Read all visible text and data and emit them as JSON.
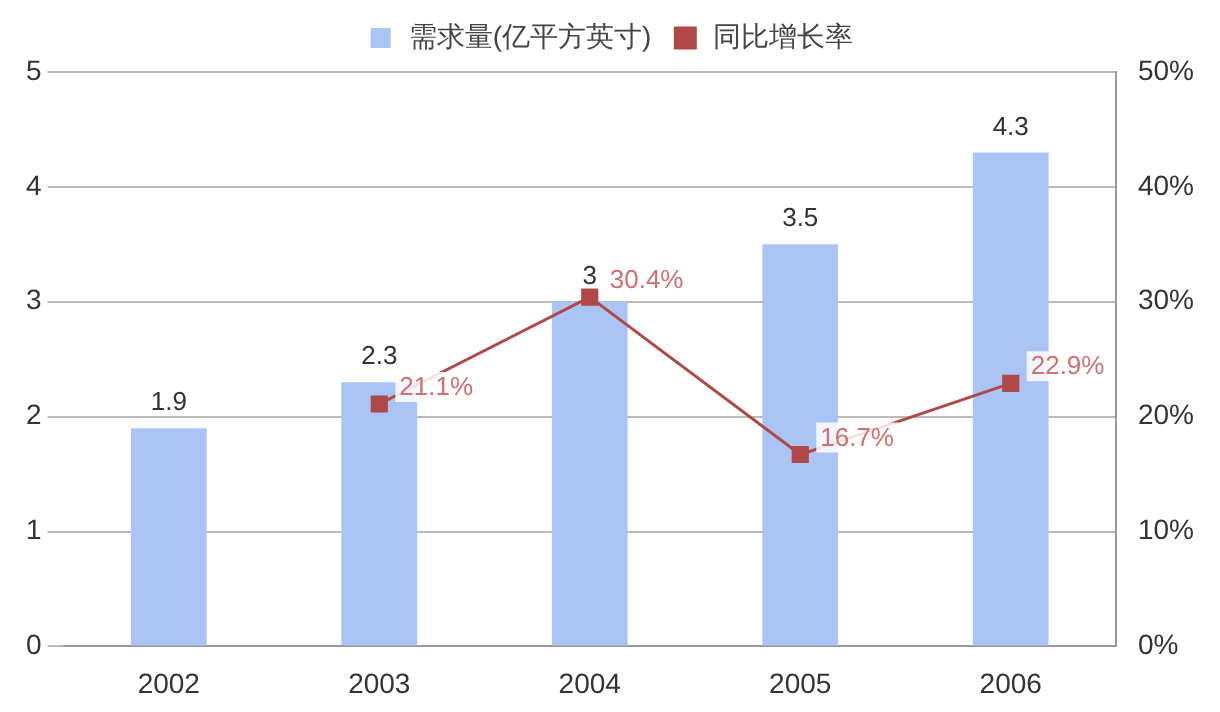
{
  "chart_data": {
    "type": "bar",
    "categories": [
      "2002",
      "2003",
      "2004",
      "2005",
      "2006"
    ],
    "series": [
      {
        "name": "需求量(亿平方英寸)",
        "color": "#a9c4f5",
        "values": [
          1.9,
          2.3,
          3,
          3.5,
          4.3
        ],
        "value_labels": [
          "1.9",
          "2.3",
          "3",
          "3.5",
          "4.3"
        ]
      },
      {
        "name": "同比增长率",
        "type": "line",
        "axis": "y2",
        "color": "#b04848",
        "values": [
          null,
          21.1,
          30.4,
          16.7,
          22.9
        ],
        "value_labels": [
          null,
          "21.1%",
          "30.4%",
          "16.7%",
          "22.9%"
        ]
      }
    ],
    "ylim": [
      0,
      5
    ],
    "yticks": [
      0,
      1,
      2,
      3,
      4,
      5
    ],
    "y2lim": [
      0,
      50
    ],
    "y2ticks": [
      {
        "value": 0,
        "label": "0%"
      },
      {
        "value": 10,
        "label": "10%"
      },
      {
        "value": 20,
        "label": "20%"
      },
      {
        "value": 30,
        "label": "30%"
      },
      {
        "value": 40,
        "label": "40%"
      },
      {
        "value": 50,
        "label": "50%"
      }
    ],
    "grid": "y",
    "legend": "top",
    "marker": "square",
    "line_style": "solid"
  }
}
